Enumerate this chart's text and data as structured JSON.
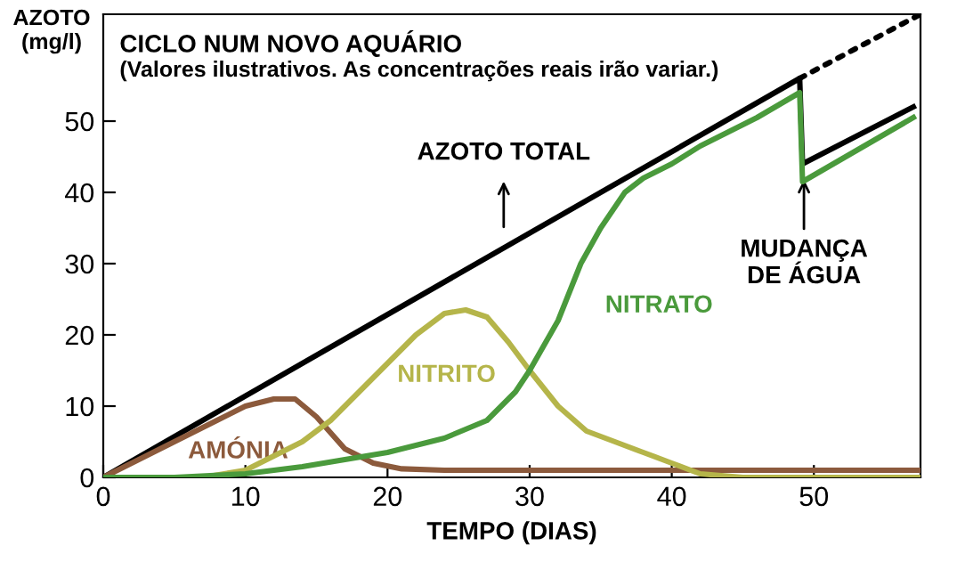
{
  "chart_data": {
    "type": "line",
    "title": "CICLO NUM NOVO AQUÁRIO",
    "subtitle": "(Valores ilustrativos. As concentrações reais irão variar.)",
    "xlabel": "TEMPO (DIAS)",
    "ylabel": "AZOTO\n(mg/l)",
    "xlim": [
      0,
      57.5
    ],
    "ylim": [
      0,
      65
    ],
    "xticks": [
      0,
      10,
      20,
      30,
      40,
      50
    ],
    "yticks": [
      0,
      10,
      20,
      30,
      40,
      50
    ],
    "grid": false,
    "legend": false,
    "marker": "none",
    "series": [
      {
        "name": "AZOTO TOTAL",
        "color": "#000000",
        "x": [
          0,
          49,
          49.2,
          57
        ],
        "values": [
          0,
          56,
          44,
          52
        ]
      },
      {
        "name": null,
        "color": "#000000",
        "line_style": "dotted",
        "x": [
          49,
          57.5
        ],
        "values": [
          56,
          65
        ]
      },
      {
        "name": "AMÓNIA",
        "color": "#8c5a3c",
        "x": [
          0,
          4,
          8,
          10,
          12,
          13.5,
          15,
          17,
          19,
          21,
          24,
          30,
          40,
          50,
          57.5
        ],
        "values": [
          0,
          4,
          8,
          10,
          11,
          11,
          8.5,
          4,
          2,
          1.2,
          1,
          1,
          1,
          1,
          1
        ]
      },
      {
        "name": "NITRITO",
        "color": "#b5b54a",
        "x": [
          0,
          7,
          10,
          12,
          14,
          16,
          18,
          20,
          22,
          24,
          25.5,
          27,
          28.5,
          30,
          32,
          34,
          36,
          38,
          40,
          42,
          45,
          57.5
        ],
        "values": [
          0,
          0,
          1,
          3,
          5,
          8,
          12,
          16,
          20,
          23,
          23.5,
          22.5,
          19,
          15,
          10,
          6.5,
          5,
          3.5,
          2,
          0.5,
          0,
          0
        ]
      },
      {
        "name": "NITRATO",
        "color": "#4a9a3c",
        "x": [
          0,
          5,
          10,
          14,
          17,
          20,
          24,
          27,
          29,
          30,
          32,
          33.6,
          35,
          36.7,
          38,
          40,
          42,
          44,
          46,
          49,
          49.2,
          57
        ],
        "values": [
          0,
          0,
          0.5,
          1.5,
          2.5,
          3.5,
          5.5,
          8,
          12,
          15,
          22,
          30,
          35,
          40,
          42,
          44,
          46.5,
          48.5,
          50.5,
          54,
          41.5,
          50.5
        ]
      }
    ],
    "annotations": [
      {
        "text": "MUDANÇA\nDE ÁGUA",
        "x": 49.3,
        "y": 41.5
      }
    ]
  }
}
